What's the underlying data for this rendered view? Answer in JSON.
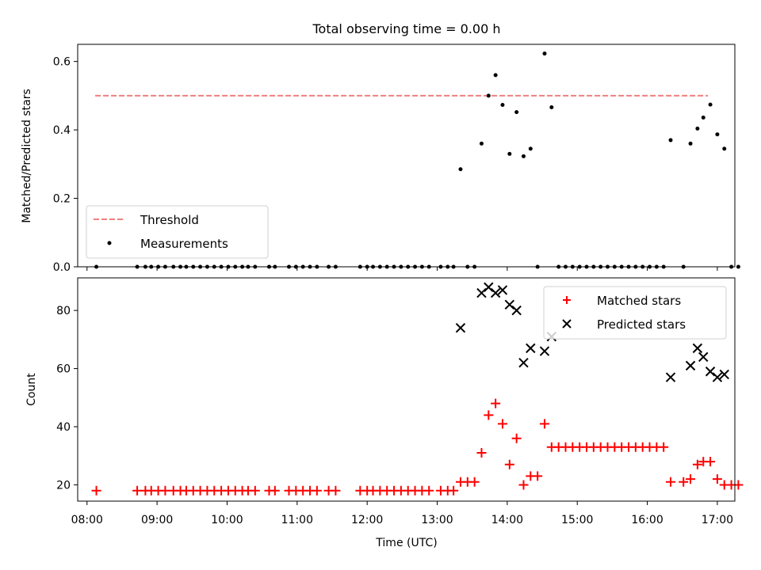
{
  "chart_data": [
    {
      "type": "scatter",
      "title": "Total observing time = 0.00 h",
      "xlabel": "",
      "ylabel": "Matched/Predicted stars",
      "xlim": [
        "07:52",
        "17:15"
      ],
      "ylim": [
        0,
        0.65
      ],
      "yticks": [
        0.0,
        0.2,
        0.4,
        0.6
      ],
      "ytick_labels": [
        "0.0",
        "0.2",
        "0.4",
        "0.6"
      ],
      "legend_position": "lower-left",
      "threshold": {
        "name": "Threshold",
        "value": 0.5,
        "x_range": [
          "08:07",
          "16:52"
        ],
        "color": "#f08080"
      },
      "series": [
        {
          "name": "Measurements",
          "color": "#000000",
          "points": [
            [
              "08:08",
              0
            ],
            [
              "08:43",
              0
            ],
            [
              "08:50",
              0
            ],
            [
              "08:55",
              0
            ],
            [
              "09:01",
              0
            ],
            [
              "09:07",
              0
            ],
            [
              "09:14",
              0
            ],
            [
              "09:20",
              0
            ],
            [
              "09:25",
              0
            ],
            [
              "09:31",
              0
            ],
            [
              "09:37",
              0
            ],
            [
              "09:43",
              0
            ],
            [
              "09:49",
              0
            ],
            [
              "09:55",
              0
            ],
            [
              "10:01",
              0
            ],
            [
              "10:07",
              0
            ],
            [
              "10:13",
              0
            ],
            [
              "10:18",
              0
            ],
            [
              "10:24",
              0
            ],
            [
              "10:36",
              0
            ],
            [
              "10:41",
              0
            ],
            [
              "10:53",
              0
            ],
            [
              "10:59",
              0
            ],
            [
              "11:05",
              0
            ],
            [
              "11:11",
              0
            ],
            [
              "11:17",
              0
            ],
            [
              "11:27",
              0
            ],
            [
              "11:33",
              0
            ],
            [
              "11:54",
              0
            ],
            [
              "12:00",
              0
            ],
            [
              "12:05",
              0
            ],
            [
              "12:11",
              0
            ],
            [
              "12:17",
              0
            ],
            [
              "12:23",
              0
            ],
            [
              "12:29",
              0
            ],
            [
              "12:35",
              0
            ],
            [
              "12:41",
              0
            ],
            [
              "12:47",
              0
            ],
            [
              "12:53",
              0
            ],
            [
              "13:03",
              0
            ],
            [
              "13:09",
              0
            ],
            [
              "13:14",
              0
            ],
            [
              "13:20",
              0.285
            ],
            [
              "13:26",
              0
            ],
            [
              "13:32",
              0
            ],
            [
              "13:38",
              0.36
            ],
            [
              "13:44",
              0.5
            ],
            [
              "13:50",
              0.56
            ],
            [
              "13:56",
              0.473
            ],
            [
              "14:02",
              0.33
            ],
            [
              "14:08",
              0.452
            ],
            [
              "14:14",
              0.323
            ],
            [
              "14:20",
              0.345
            ],
            [
              "14:26",
              0
            ],
            [
              "14:32",
              0.623
            ],
            [
              "14:38",
              0.466
            ],
            [
              "14:44",
              0
            ],
            [
              "14:50",
              0
            ],
            [
              "14:56",
              0
            ],
            [
              "15:02",
              0
            ],
            [
              "15:08",
              0
            ],
            [
              "15:14",
              0
            ],
            [
              "15:20",
              0
            ],
            [
              "15:26",
              0
            ],
            [
              "15:32",
              0
            ],
            [
              "15:38",
              0
            ],
            [
              "15:44",
              0
            ],
            [
              "15:50",
              0
            ],
            [
              "15:56",
              0
            ],
            [
              "16:02",
              0
            ],
            [
              "16:08",
              0
            ],
            [
              "16:14",
              0
            ],
            [
              "16:20",
              0.37
            ],
            [
              "16:31",
              0
            ],
            [
              "16:37",
              0.36
            ],
            [
              "16:43",
              0.404
            ],
            [
              "16:48",
              0.436
            ],
            [
              "16:54",
              0.474
            ],
            [
              "17:00",
              0.387
            ],
            [
              "17:06",
              0.345
            ],
            [
              "17:12",
              0
            ],
            [
              "17:18",
              0
            ]
          ]
        }
      ]
    },
    {
      "type": "scatter",
      "title": "",
      "xlabel": "Time (UTC)",
      "ylabel": "Count",
      "xlim": [
        "07:52",
        "17:15"
      ],
      "ylim": [
        14.4,
        91.2
      ],
      "yticks": [
        20,
        40,
        60,
        80
      ],
      "ytick_labels": [
        "20",
        "40",
        "60",
        "80"
      ],
      "xticks": [
        "08:00",
        "09:00",
        "10:00",
        "11:00",
        "12:00",
        "13:00",
        "14:00",
        "15:00",
        "16:00",
        "17:00"
      ],
      "xtick_labels": [
        "08:00",
        "09:00",
        "10:00",
        "11:00",
        "12:00",
        "13:00",
        "14:00",
        "15:00",
        "16:00",
        "17:00"
      ],
      "legend_position": "upper-right",
      "series": [
        {
          "name": "Matched stars",
          "color": "#ff0000",
          "marker": "plus",
          "points": [
            [
              "08:08",
              18
            ],
            [
              "08:43",
              18
            ],
            [
              "08:50",
              18
            ],
            [
              "08:55",
              18
            ],
            [
              "09:01",
              18
            ],
            [
              "09:07",
              18
            ],
            [
              "09:14",
              18
            ],
            [
              "09:20",
              18
            ],
            [
              "09:25",
              18
            ],
            [
              "09:31",
              18
            ],
            [
              "09:37",
              18
            ],
            [
              "09:43",
              18
            ],
            [
              "09:49",
              18
            ],
            [
              "09:55",
              18
            ],
            [
              "10:01",
              18
            ],
            [
              "10:07",
              18
            ],
            [
              "10:13",
              18
            ],
            [
              "10:18",
              18
            ],
            [
              "10:24",
              18
            ],
            [
              "10:36",
              18
            ],
            [
              "10:41",
              18
            ],
            [
              "10:53",
              18
            ],
            [
              "10:59",
              18
            ],
            [
              "11:05",
              18
            ],
            [
              "11:11",
              18
            ],
            [
              "11:17",
              18
            ],
            [
              "11:27",
              18
            ],
            [
              "11:33",
              18
            ],
            [
              "11:54",
              18
            ],
            [
              "12:00",
              18
            ],
            [
              "12:05",
              18
            ],
            [
              "12:11",
              18
            ],
            [
              "12:17",
              18
            ],
            [
              "12:23",
              18
            ],
            [
              "12:29",
              18
            ],
            [
              "12:35",
              18
            ],
            [
              "12:41",
              18
            ],
            [
              "12:47",
              18
            ],
            [
              "12:53",
              18
            ],
            [
              "13:03",
              18
            ],
            [
              "13:09",
              18
            ],
            [
              "13:14",
              18
            ],
            [
              "13:20",
              21
            ],
            [
              "13:26",
              21
            ],
            [
              "13:32",
              21
            ],
            [
              "13:38",
              31
            ],
            [
              "13:44",
              44
            ],
            [
              "13:50",
              48
            ],
            [
              "13:56",
              41
            ],
            [
              "14:02",
              27
            ],
            [
              "14:08",
              36
            ],
            [
              "14:14",
              20
            ],
            [
              "14:20",
              23
            ],
            [
              "14:26",
              23
            ],
            [
              "14:32",
              41
            ],
            [
              "14:38",
              33
            ],
            [
              "14:44",
              33
            ],
            [
              "14:50",
              33
            ],
            [
              "14:56",
              33
            ],
            [
              "15:02",
              33
            ],
            [
              "15:08",
              33
            ],
            [
              "15:14",
              33
            ],
            [
              "15:20",
              33
            ],
            [
              "15:26",
              33
            ],
            [
              "15:32",
              33
            ],
            [
              "15:38",
              33
            ],
            [
              "15:44",
              33
            ],
            [
              "15:50",
              33
            ],
            [
              "15:56",
              33
            ],
            [
              "16:02",
              33
            ],
            [
              "16:08",
              33
            ],
            [
              "16:14",
              33
            ],
            [
              "16:20",
              21
            ],
            [
              "16:31",
              21
            ],
            [
              "16:37",
              22
            ],
            [
              "16:43",
              27
            ],
            [
              "16:48",
              28
            ],
            [
              "16:54",
              28
            ],
            [
              "17:00",
              22
            ],
            [
              "17:06",
              20
            ],
            [
              "17:12",
              20
            ],
            [
              "17:18",
              20
            ]
          ]
        },
        {
          "name": "Predicted stars",
          "color": "#000000",
          "marker": "x",
          "points": [
            [
              "13:20",
              74
            ],
            [
              "13:38",
              86
            ],
            [
              "13:44",
              88
            ],
            [
              "13:50",
              86
            ],
            [
              "13:56",
              87
            ],
            [
              "14:02",
              82
            ],
            [
              "14:08",
              80
            ],
            [
              "14:14",
              62
            ],
            [
              "14:20",
              67
            ],
            [
              "14:32",
              66
            ],
            [
              "14:38",
              71
            ],
            [
              "16:20",
              57
            ],
            [
              "16:37",
              61
            ],
            [
              "16:43",
              67
            ],
            [
              "16:48",
              64
            ],
            [
              "16:54",
              59
            ],
            [
              "17:00",
              57
            ],
            [
              "17:06",
              58
            ]
          ]
        }
      ]
    }
  ]
}
